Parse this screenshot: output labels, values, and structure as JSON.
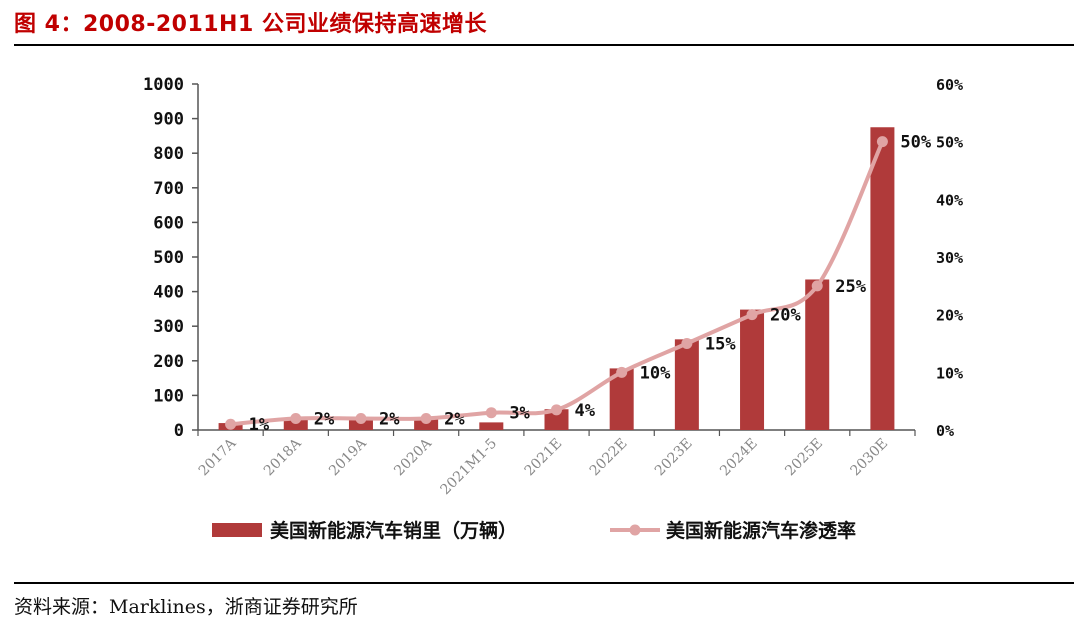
{
  "figure": {
    "title": "图 4：2008-2011H1 公司业绩保持高速增长",
    "source": "资料来源：Marklines，浙商证券研究所"
  },
  "colors": {
    "bar": "#b03a3a",
    "line": "#e0a4a4",
    "title": "#c00000"
  },
  "chart_data": {
    "type": "bar",
    "title": "",
    "categories": [
      "2017A",
      "2018A",
      "2019A",
      "2020A",
      "2021M1-5",
      "2021E",
      "2022E",
      "2023E",
      "2024E",
      "2025E",
      "2030E"
    ],
    "series": [
      {
        "name": "美国新能源汽车销里（万辆）",
        "type": "bar",
        "axis": "left",
        "values": [
          20,
          33,
          30,
          32,
          22,
          60,
          178,
          262,
          348,
          435,
          875
        ]
      },
      {
        "name": "美国新能源汽车渗透率",
        "type": "line",
        "axis": "right",
        "values": [
          1,
          2,
          2,
          2,
          3,
          3.5,
          10,
          15,
          20,
          25,
          50
        ]
      }
    ],
    "data_labels": [
      "1%",
      "2%",
      "2%",
      "2%",
      "3%",
      "4%",
      "10%",
      "15%",
      "20%",
      "25%",
      "50%"
    ],
    "y_left": {
      "min": 0,
      "max": 1000,
      "ticks": [
        0,
        100,
        200,
        300,
        400,
        500,
        600,
        700,
        800,
        900,
        1000
      ]
    },
    "y_right": {
      "min": 0,
      "max": 60,
      "ticks": [
        "0%",
        "10%",
        "20%",
        "30%",
        "40%",
        "50%",
        "60%"
      ]
    },
    "grid": false,
    "legend_position": "bottom"
  }
}
